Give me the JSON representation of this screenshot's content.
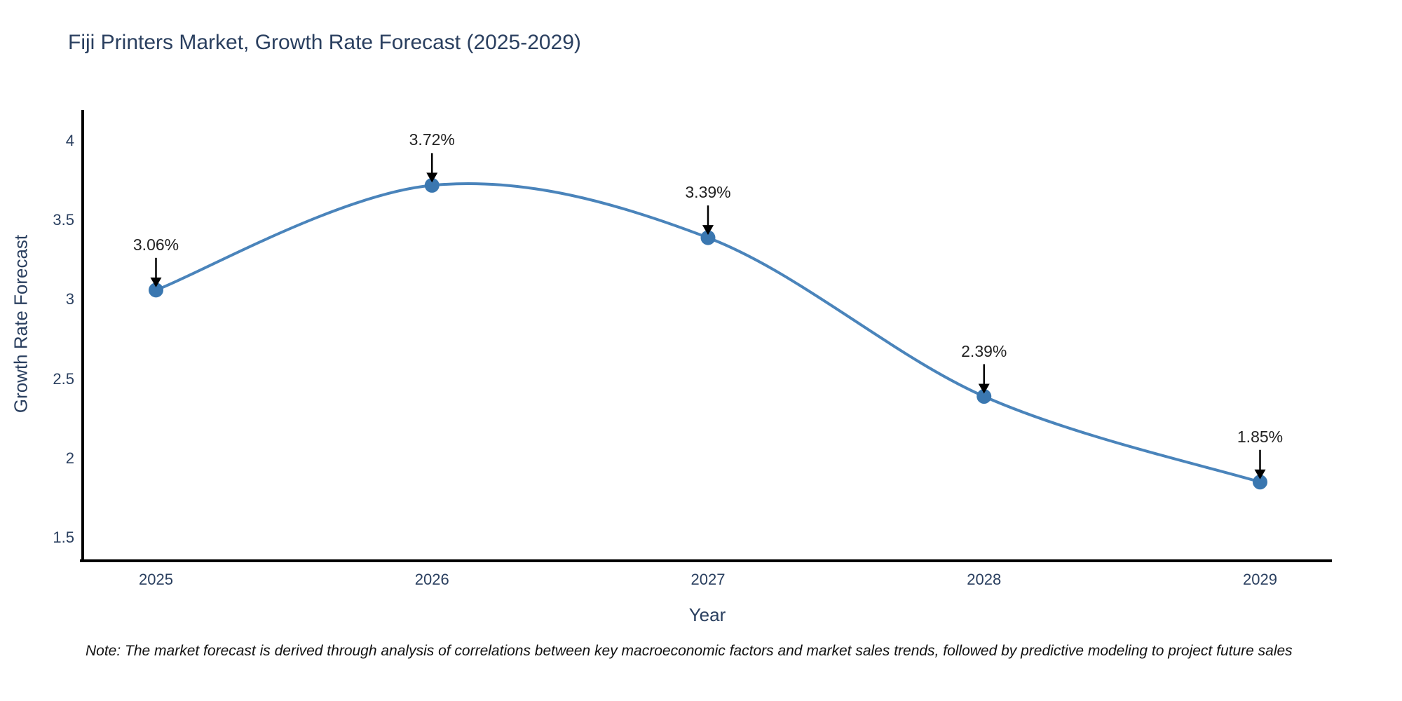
{
  "note": "Note: The market forecast is derived through analysis of correlations between key macroeconomic factors and market sales trends, followed by predictive modeling to project future sales",
  "chart_data": {
    "type": "line",
    "title": "Fiji Printers Market, Growth Rate Forecast (2025-2029)",
    "xlabel": "Year",
    "ylabel": "Growth Rate Forecast",
    "x": [
      2025,
      2026,
      2027,
      2028,
      2029
    ],
    "values": [
      3.06,
      3.72,
      3.39,
      2.39,
      1.85
    ],
    "point_labels": [
      "3.06%",
      "3.72%",
      "3.39%",
      "2.39%",
      "1.85%"
    ],
    "x_tick_labels": [
      "2025",
      "2026",
      "2027",
      "2028",
      "2029"
    ],
    "y_ticks": [
      4,
      3.5,
      3,
      2.5,
      2,
      1.5
    ],
    "y_tick_labels": [
      "4",
      "3.5",
      "3",
      "2.5",
      "2",
      "1.5"
    ],
    "ylim": [
      1.35,
      4.19
    ],
    "grid": false,
    "legend": "none",
    "line_smoothing": "spline",
    "annotation_arrows": true,
    "colors": {
      "line": "#4a84bb",
      "marker": "#3a77b0",
      "arrow": "#000000",
      "axis": "#000000",
      "heading_text": "#2a3f5f",
      "annotation_text": "#222222"
    }
  }
}
